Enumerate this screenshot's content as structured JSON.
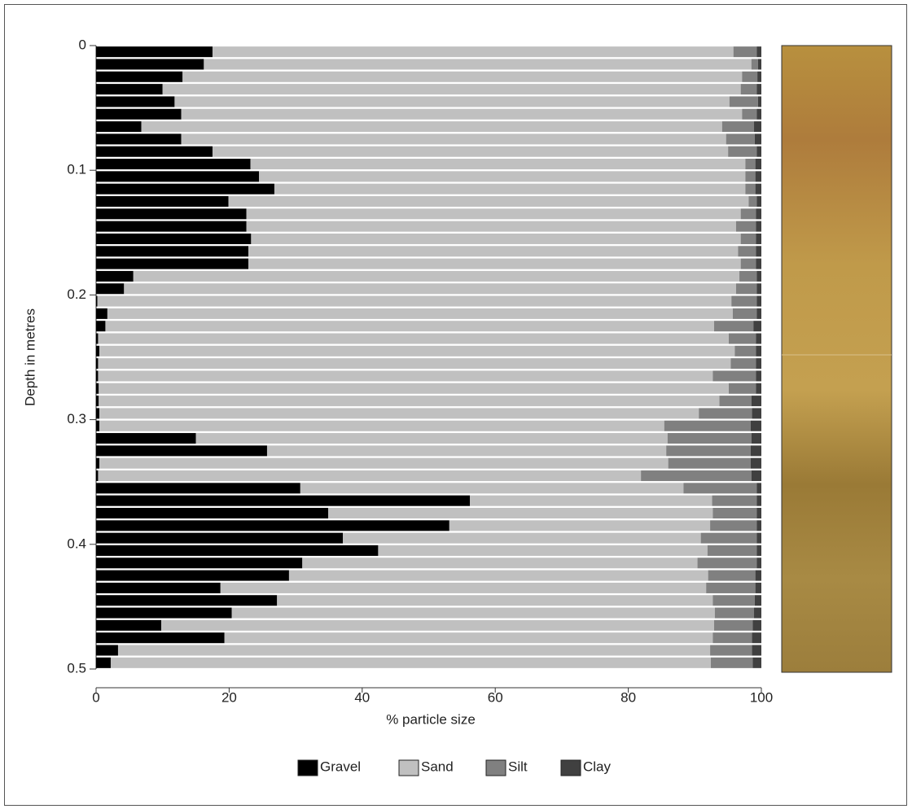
{
  "chart_data": {
    "type": "stacked-barh",
    "xlabel": "% particle size",
    "ylabel": "Depth in metres",
    "y": [
      0.005,
      0.015,
      0.025,
      0.035,
      0.045,
      0.055,
      0.065,
      0.075,
      0.085,
      0.095,
      0.105,
      0.115,
      0.125,
      0.135,
      0.145,
      0.155,
      0.165,
      0.175,
      0.185,
      0.195,
      0.205,
      0.215,
      0.225,
      0.235,
      0.245,
      0.255,
      0.265,
      0.275,
      0.285,
      0.295,
      0.305,
      0.315,
      0.325,
      0.335,
      0.345,
      0.355,
      0.365,
      0.375,
      0.385,
      0.395,
      0.405,
      0.415,
      0.425,
      0.435,
      0.445,
      0.455,
      0.465,
      0.475,
      0.485,
      0.495
    ],
    "series": [
      {
        "name": "Gravel",
        "color": "#000000",
        "values": [
          17.5,
          16.2,
          13.0,
          10.0,
          11.8,
          12.8,
          6.8,
          12.8,
          17.5,
          23.2,
          24.5,
          26.8,
          19.9,
          22.6,
          22.6,
          23.3,
          22.9,
          22.9,
          5.6,
          4.2,
          0.2,
          1.7,
          1.4,
          0.3,
          0.5,
          0.3,
          0.3,
          0.4,
          0.4,
          0.5,
          0.5,
          15.0,
          25.7,
          0.5,
          0.3,
          30.7,
          56.2,
          34.9,
          53.1,
          37.1,
          42.4,
          31.0,
          29.0,
          18.7,
          27.2,
          20.4,
          9.8,
          19.3,
          3.3,
          2.2
        ]
      },
      {
        "name": "Sand",
        "color": "#c0c0c0",
        "values": [
          78.3,
          82.3,
          84.1,
          86.9,
          83.4,
          84.3,
          87.3,
          81.9,
          77.5,
          74.4,
          73.1,
          70.8,
          78.2,
          74.3,
          73.6,
          73.6,
          73.6,
          74.0,
          91.1,
          92.0,
          95.3,
          94.0,
          91.5,
          94.8,
          95.5,
          95.1,
          92.4,
          94.7,
          93.3,
          90.1,
          84.9,
          70.9,
          60.0,
          85.5,
          81.6,
          57.6,
          36.4,
          57.8,
          39.2,
          53.8,
          49.5,
          59.4,
          63.0,
          73.0,
          65.5,
          72.6,
          83.1,
          73.4,
          89.0,
          90.2
        ]
      },
      {
        "name": "Silt",
        "color": "#808080",
        "values": [
          3.5,
          1.0,
          2.3,
          2.4,
          4.3,
          2.2,
          4.8,
          4.3,
          4.3,
          1.5,
          1.5,
          1.5,
          1.2,
          2.3,
          3.0,
          2.3,
          2.7,
          2.3,
          2.6,
          3.1,
          3.8,
          3.6,
          5.9,
          4.1,
          3.2,
          3.8,
          6.5,
          4.1,
          4.8,
          8.0,
          13.0,
          12.6,
          12.7,
          12.4,
          16.6,
          11.0,
          6.7,
          6.6,
          7.0,
          8.4,
          7.4,
          8.9,
          7.1,
          7.4,
          6.3,
          5.9,
          5.8,
          5.9,
          6.3,
          6.3
        ]
      },
      {
        "name": "Clay",
        "color": "#404040",
        "values": [
          0.7,
          0.5,
          0.6,
          0.7,
          0.5,
          0.7,
          1.1,
          1.0,
          0.7,
          0.9,
          0.9,
          0.9,
          0.7,
          0.8,
          0.8,
          0.8,
          0.8,
          0.8,
          0.7,
          0.7,
          0.7,
          0.7,
          1.2,
          0.8,
          0.8,
          0.8,
          0.8,
          0.8,
          1.5,
          1.4,
          1.6,
          1.5,
          1.6,
          1.6,
          1.5,
          0.7,
          0.7,
          0.7,
          0.7,
          0.7,
          0.7,
          0.7,
          0.9,
          0.9,
          1.0,
          1.1,
          1.3,
          1.4,
          1.4,
          1.3
        ]
      }
    ],
    "xlim": [
      0,
      100
    ],
    "xticks": [
      0,
      20,
      40,
      60,
      80,
      100
    ],
    "ylim": [
      0,
      0.5
    ],
    "yticks": [
      0,
      0.1,
      0.2,
      0.3,
      0.4,
      0.5
    ]
  }
}
